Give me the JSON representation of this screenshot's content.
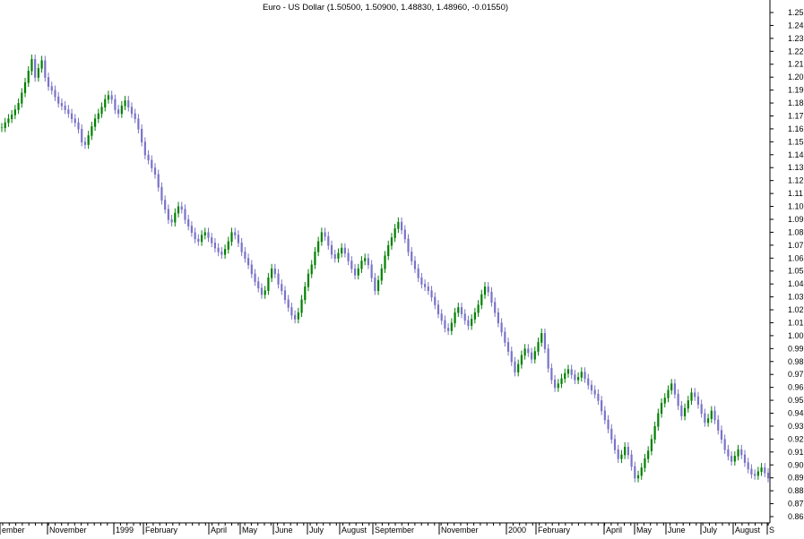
{
  "chart_data": {
    "type": "candlestick",
    "title": "Euro - US Dollar (1.50500, 1.50900, 1.48830, 1.48960, -0.01550)",
    "xlabel": "",
    "ylabel": "",
    "ylim": [
      0.86,
      1.25
    ],
    "y_ticks": [
      1.25,
      1.24,
      1.23,
      1.22,
      1.21,
      1.2,
      1.19,
      1.18,
      1.17,
      1.16,
      1.15,
      1.14,
      1.13,
      1.12,
      1.11,
      1.1,
      1.09,
      1.08,
      1.07,
      1.06,
      1.05,
      1.04,
      1.03,
      1.02,
      1.01,
      1.0,
      0.99,
      0.98,
      0.97,
      0.96,
      0.95,
      0.94,
      0.93,
      0.92,
      0.91,
      0.9,
      0.89,
      0.88,
      0.87,
      0.86
    ],
    "x_tick_labels": [
      "ember",
      "November",
      "1999",
      "February",
      "April",
      "May",
      "June",
      "July",
      "August",
      "September",
      "November",
      "2000",
      "February",
      "April",
      "May",
      "June",
      "July",
      "August",
      "S"
    ],
    "grid": false,
    "legend": "none",
    "colors": {
      "up": "#008000",
      "down": "#7a73c7",
      "axis": "#000000",
      "text": "#000000"
    },
    "series": [
      {
        "values": [
          1.161,
          1.165,
          1.168,
          1.171,
          1.175,
          1.18,
          1.188,
          1.196,
          1.205,
          1.214,
          1.2,
          1.207,
          1.213,
          1.2,
          1.193,
          1.19,
          1.185,
          1.18,
          1.178,
          1.175,
          1.172,
          1.168,
          1.165,
          1.16,
          1.15,
          1.148,
          1.155,
          1.162,
          1.168,
          1.172,
          1.177,
          1.183,
          1.186,
          1.183,
          1.175,
          1.172,
          1.178,
          1.182,
          1.177,
          1.172,
          1.168,
          1.16,
          1.15,
          1.14,
          1.136,
          1.13,
          1.125,
          1.115,
          1.105,
          1.098,
          1.09,
          1.088,
          1.095,
          1.1,
          1.098,
          1.09,
          1.085,
          1.08,
          1.075,
          1.073,
          1.078,
          1.08,
          1.076,
          1.072,
          1.068,
          1.065,
          1.063,
          1.067,
          1.073,
          1.08,
          1.078,
          1.072,
          1.065,
          1.06,
          1.055,
          1.048,
          1.042,
          1.037,
          1.032,
          1.035,
          1.045,
          1.052,
          1.048,
          1.04,
          1.035,
          1.028,
          1.022,
          1.016,
          1.013,
          1.018,
          1.028,
          1.038,
          1.048,
          1.055,
          1.065,
          1.073,
          1.08,
          1.077,
          1.07,
          1.063,
          1.06,
          1.064,
          1.068,
          1.064,
          1.058,
          1.052,
          1.047,
          1.052,
          1.058,
          1.06,
          1.055,
          1.045,
          1.035,
          1.043,
          1.052,
          1.062,
          1.07,
          1.076,
          1.083,
          1.088,
          1.082,
          1.075,
          1.065,
          1.058,
          1.052,
          1.045,
          1.04,
          1.038,
          1.035,
          1.03,
          1.024,
          1.017,
          1.012,
          1.006,
          1.004,
          1.01,
          1.018,
          1.022,
          1.017,
          1.012,
          1.008,
          1.013,
          1.018,
          1.024,
          1.032,
          1.038,
          1.034,
          1.026,
          1.018,
          1.01,
          1.003,
          0.995,
          0.988,
          0.98,
          0.972,
          0.978,
          0.985,
          0.99,
          0.987,
          0.982,
          0.988,
          0.995,
          1.002,
          0.99,
          0.975,
          0.966,
          0.96,
          0.963,
          0.967,
          0.971,
          0.974,
          0.97,
          0.966,
          0.968,
          0.972,
          0.967,
          0.962,
          0.958,
          0.955,
          0.95,
          0.942,
          0.935,
          0.928,
          0.92,
          0.912,
          0.905,
          0.908,
          0.914,
          0.908,
          0.899,
          0.89,
          0.892,
          0.898,
          0.905,
          0.911,
          0.92,
          0.93,
          0.94,
          0.948,
          0.952,
          0.958,
          0.963,
          0.955,
          0.946,
          0.938,
          0.944,
          0.95,
          0.956,
          0.953,
          0.947,
          0.94,
          0.933,
          0.936,
          0.942,
          0.935,
          0.927,
          0.92,
          0.912,
          0.907,
          0.903,
          0.907,
          0.912,
          0.908,
          0.902,
          0.897,
          0.893,
          0.892,
          0.895,
          0.898,
          0.894,
          0.89
        ]
      }
    ]
  }
}
